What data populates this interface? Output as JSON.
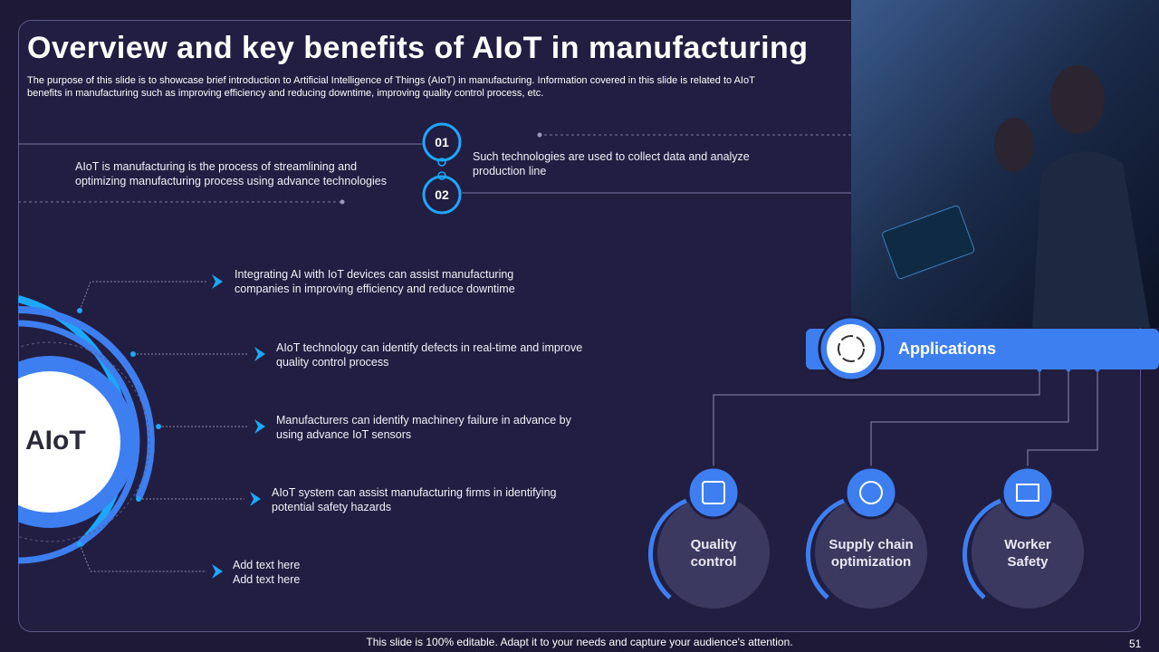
{
  "header": {
    "title": "Overview and key benefits of AIoT in manufacturing",
    "subtitle": [
      "The purpose of this slide is to showcase brief introduction to Artificial Intelligence of Things (AIoT) in manufacturing. Information covered in this slide is related to AIoT",
      "benefits in manufacturing such as improving efficiency and reducing downtime, improving quality control process, etc."
    ]
  },
  "intro": {
    "left": [
      "AIoT is manufacturing  is the process of streamlining and",
      "optimizing manufacturing  process using advance technologies"
    ],
    "steps": [
      "01",
      "02"
    ],
    "right": [
      "Such technologies are used to collect data and analyze",
      "production line"
    ]
  },
  "hub": {
    "label": "AIoT"
  },
  "benefits": [
    {
      "lines": [
        "Integrating AI with IoT devices can assist manufacturing",
        "companies in improving  efficiency and reduce downtime"
      ]
    },
    {
      "lines": [
        "AIoT technology can identify defects in real-time and improve",
        "quality control process"
      ]
    },
    {
      "lines": [
        "Manufacturers can identify machinery failure in advance  by",
        "using advance  IoT sensors"
      ]
    },
    {
      "lines": [
        "AIoT  system can assist manufacturing firms in identifying",
        "potential safety hazards"
      ]
    },
    {
      "lines": [
        "Add text here",
        "Add text here"
      ]
    }
  ],
  "applications": {
    "title": "Applications",
    "items": [
      {
        "lines": [
          "Quality",
          "control"
        ]
      },
      {
        "lines": [
          "Supply chain",
          "optimization"
        ]
      },
      {
        "lines": [
          "Worker",
          "Safety"
        ]
      }
    ]
  },
  "footer": {
    "note": "This slide is 100% editable. Adapt it to your needs and capture your audience's attention.",
    "page": "51"
  }
}
